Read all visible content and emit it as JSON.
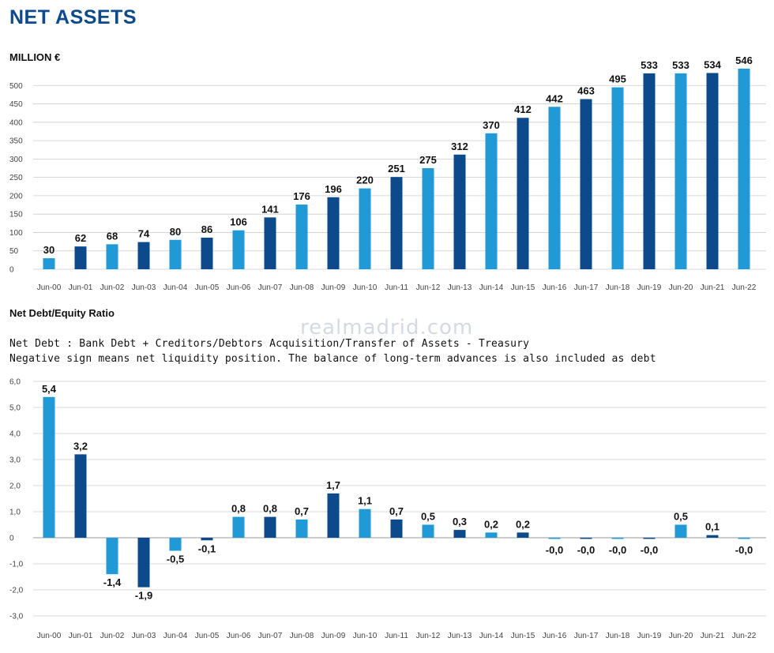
{
  "header": {
    "title": "NET ASSETS",
    "unit": "MILLION €",
    "subtitle": "Net Debt/Equity Ratio",
    "note1": "Net Debt : Bank Debt + Creditors/Debtors Acquisition/Transfer of Assets - Treasury",
    "note2": "Negative sign means net liquidity position. The balance of long-term advances is also included as debt",
    "watermark": "realmadrid.com"
  },
  "colors": {
    "dark": "#0c4a8c",
    "light": "#1f9ad6",
    "axis": "#cccccc"
  },
  "chart_data": [
    {
      "type": "bar",
      "title": "NET ASSETS",
      "ylabel": "MILLION €",
      "categories": [
        "Jun-00",
        "Jun-01",
        "Jun-02",
        "Jun-03",
        "Jun-04",
        "Jun-05",
        "Jun-06",
        "Jun-07",
        "Jun-08",
        "Jun-09",
        "Jun-10",
        "Jun-11",
        "Jun-12",
        "Jun-13",
        "Jun-14",
        "Jun-15",
        "Jun-16",
        "Jun-17",
        "Jun-18",
        "Jun-19",
        "Jun-20",
        "Jun-21",
        "Jun-22"
      ],
      "values": [
        30,
        62,
        68,
        74,
        80,
        86,
        106,
        141,
        176,
        196,
        220,
        251,
        275,
        312,
        370,
        412,
        442,
        463,
        495,
        533,
        533,
        534,
        546
      ],
      "value_labels": [
        "30",
        "62",
        "68",
        "74",
        "80",
        "86",
        "106",
        "141",
        "176",
        "196",
        "220",
        "251",
        "275",
        "312",
        "370",
        "412",
        "442",
        "463",
        "495",
        "533",
        "533",
        "534",
        "546"
      ],
      "ylim": [
        0,
        550
      ],
      "yticks": [
        0,
        50,
        100,
        150,
        200,
        250,
        300,
        350,
        400,
        450,
        500
      ],
      "ytick_labels": [
        "0",
        "50",
        "100",
        "150",
        "200",
        "250",
        "300",
        "350",
        "400",
        "450",
        "500"
      ],
      "bar_colors": [
        "light",
        "dark",
        "light",
        "dark",
        "light",
        "dark",
        "light",
        "dark",
        "light",
        "dark",
        "light",
        "dark",
        "light",
        "dark",
        "light",
        "dark",
        "light",
        "dark",
        "light",
        "dark",
        "light",
        "dark",
        "light"
      ],
      "grid": true
    },
    {
      "type": "bar",
      "title": "Net Debt/Equity Ratio",
      "categories": [
        "Jun-00",
        "Jun-01",
        "Jun-02",
        "Jun-03",
        "Jun-04",
        "Jun-05",
        "Jun-06",
        "Jun-07",
        "Jun-08",
        "Jun-09",
        "Jun-10",
        "Jun-11",
        "Jun-12",
        "Jun-13",
        "Jun-14",
        "Jun-15",
        "Jun-16",
        "Jun-17",
        "Jun-18",
        "Jun-19",
        "Jun-20",
        "Jun-21",
        "Jun-22"
      ],
      "values": [
        5.4,
        3.2,
        -1.4,
        -1.9,
        -0.5,
        -0.1,
        0.8,
        0.8,
        0.7,
        1.7,
        1.1,
        0.7,
        0.5,
        0.3,
        0.2,
        0.2,
        -0.0,
        -0.0,
        -0.0,
        -0.0,
        0.5,
        0.1,
        -0.0
      ],
      "value_labels": [
        "5,4",
        "3,2",
        "-1,4",
        "-1,9",
        "-0,5",
        "-0,1",
        "0,8",
        "0,8",
        "0,7",
        "1,7",
        "1,1",
        "0,7",
        "0,5",
        "0,3",
        "0,2",
        "0,2",
        "-0,0",
        "-0,0",
        "-0,0",
        "-0,0",
        "0,5",
        "0,1",
        "-0,0"
      ],
      "ylim": [
        -3.0,
        6.0
      ],
      "yticks": [
        -3,
        -2,
        -1,
        0,
        1,
        2,
        3,
        4,
        5,
        6
      ],
      "ytick_labels": [
        "-3,0",
        "-2,0",
        "-1,0",
        "0",
        "1,0",
        "2,0",
        "3,0",
        "4,0",
        "5,0",
        "6,0"
      ],
      "bar_colors": [
        "light",
        "dark",
        "light",
        "dark",
        "light",
        "dark",
        "light",
        "dark",
        "light",
        "dark",
        "light",
        "dark",
        "light",
        "dark",
        "light",
        "dark",
        "light",
        "dark",
        "light",
        "dark",
        "light",
        "dark",
        "light"
      ],
      "grid": true
    }
  ]
}
